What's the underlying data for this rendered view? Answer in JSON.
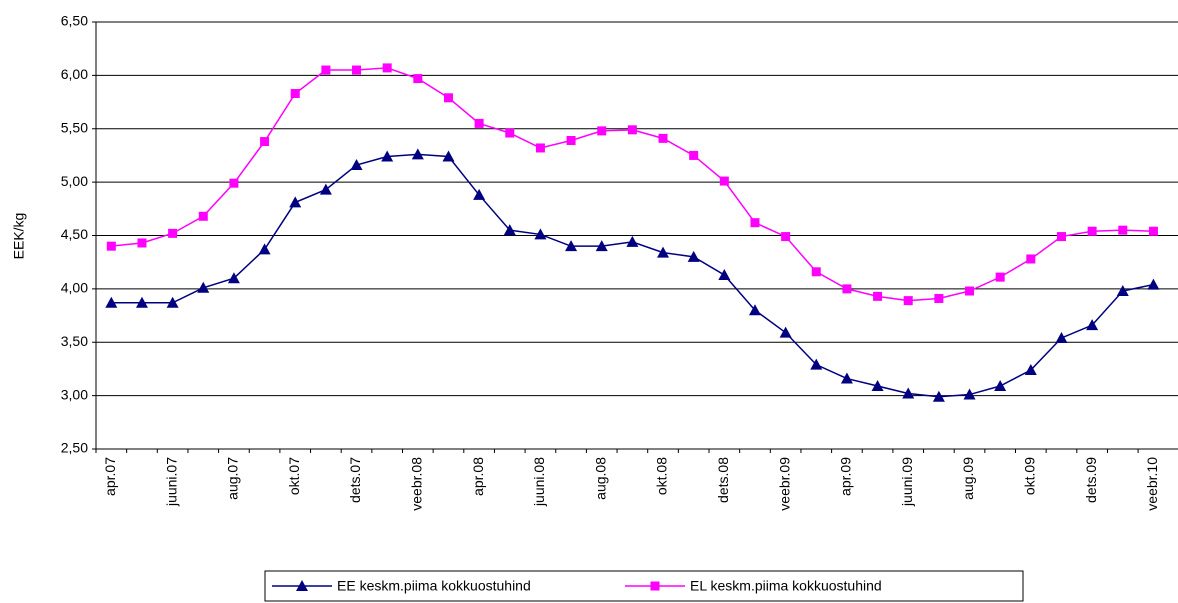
{
  "chart_data": {
    "type": "line",
    "y_label": "EEK/kg",
    "categories": [
      "apr.07",
      null,
      "juuni.07",
      null,
      "aug.07",
      null,
      "okt.07",
      null,
      "dets.07",
      null,
      "veebr.08",
      null,
      "apr.08",
      null,
      "juuni.08",
      null,
      "aug.08",
      null,
      "okt.08",
      null,
      "dets.08",
      null,
      "veebr.09",
      null,
      "apr.09",
      null,
      "juuni.09",
      null,
      "aug.09",
      null,
      "okt.09",
      null,
      "dets.09",
      null,
      "veebr.10"
    ],
    "series": [
      {
        "name": "EE keskm.piima kokkuostuhind",
        "color": "#000080",
        "marker": "triangle",
        "values": [
          3.87,
          3.87,
          3.87,
          4.01,
          4.1,
          4.37,
          4.81,
          4.93,
          5.16,
          5.24,
          5.26,
          5.24,
          4.88,
          4.55,
          4.51,
          4.4,
          4.4,
          4.44,
          4.34,
          4.3,
          4.13,
          3.8,
          3.59,
          3.29,
          3.16,
          3.09,
          3.02,
          2.99,
          3.01,
          3.09,
          3.24,
          3.54,
          3.66,
          3.98,
          4.04
        ]
      },
      {
        "name": "EL keskm.piima kokkuostuhind",
        "color": "#ff00ff",
        "marker": "square",
        "values": [
          4.4,
          4.43,
          4.52,
          4.68,
          4.99,
          5.38,
          5.83,
          6.05,
          6.05,
          6.07,
          5.97,
          5.79,
          5.55,
          5.46,
          5.32,
          5.39,
          5.48,
          5.49,
          5.41,
          5.25,
          5.01,
          4.62,
          4.49,
          4.16,
          4.0,
          3.93,
          3.89,
          3.91,
          3.98,
          4.11,
          4.28,
          4.49,
          4.54,
          4.55,
          4.54
        ]
      }
    ],
    "ylim": [
      2.5,
      6.5
    ],
    "yticks": [
      {
        "value": 2.5,
        "label": "2,50"
      },
      {
        "value": 3,
        "label": "3,00"
      },
      {
        "value": 3.5,
        "label": "3,50"
      },
      {
        "value": 4,
        "label": "4,00"
      },
      {
        "value": 4.5,
        "label": "4,50"
      },
      {
        "value": 5,
        "label": "5,00"
      },
      {
        "value": 5.5,
        "label": "5,50"
      },
      {
        "value": 6,
        "label": "6,00"
      },
      {
        "value": 6.5,
        "label": "6,50"
      }
    ],
    "grid": true,
    "legend": "bottom"
  }
}
